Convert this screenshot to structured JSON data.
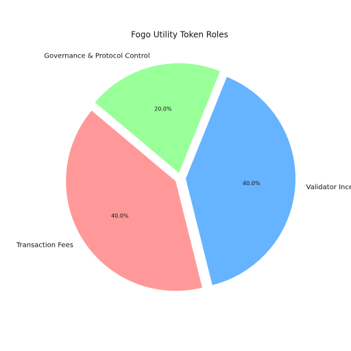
{
  "chart_data": {
    "type": "pie",
    "title": "Fogo Utility Token Roles",
    "categories": [
      "Transaction Fees",
      "Validator Incentives",
      "Governance & Protocol Control"
    ],
    "values": [
      40,
      40,
      20
    ],
    "value_labels": [
      "40.0%",
      "40.0%",
      "20.0%"
    ],
    "colors": [
      "#ff9999",
      "#66b3ff",
      "#99ff99"
    ]
  }
}
